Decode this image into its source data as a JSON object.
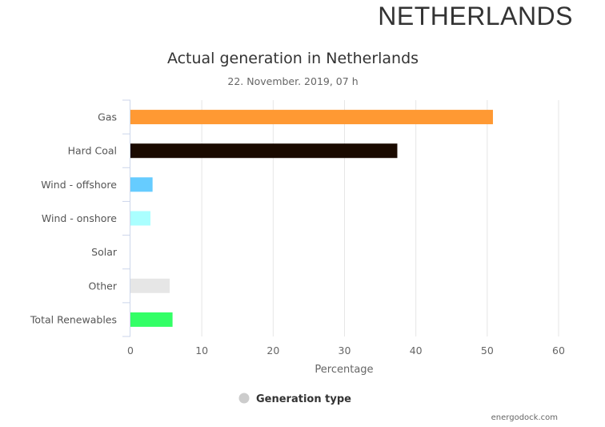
{
  "header": {
    "country": "NETHERLANDS"
  },
  "chart_data": {
    "type": "bar",
    "orientation": "horizontal",
    "title": "Actual generation in Netherlands",
    "subtitle": "22. November. 2019, 07 h",
    "categories": [
      "Gas",
      "Hard Coal",
      "Wind - offshore",
      "Wind - onshore",
      "Solar",
      "Other",
      "Total Renewables"
    ],
    "values": [
      50.8,
      37.4,
      3.1,
      2.8,
      0,
      5.5,
      5.9
    ],
    "colors": [
      "#ff9933",
      "#1a0a00",
      "#66ccff",
      "#aaffff",
      "#ffff66",
      "#e6e6e6",
      "#33ff66"
    ],
    "xlabel": "Percentage",
    "ylabel": "",
    "xlim": [
      0,
      60
    ],
    "xticks": [
      "0",
      "10",
      "20",
      "30",
      "40",
      "50",
      "60"
    ],
    "grid": "vertical",
    "legend": {
      "label": "Generation type",
      "position": "bottom-center",
      "color": "#cccccc"
    },
    "credit": "energodock.com"
  }
}
